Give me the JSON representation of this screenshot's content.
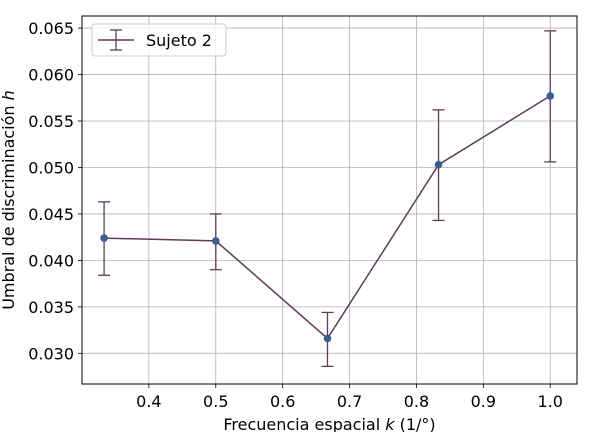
{
  "chart_data": {
    "type": "line",
    "title": "",
    "xlabel_parts": [
      "Frecuencia espacial ",
      "k",
      " (1/°)"
    ],
    "ylabel_parts": [
      "Umbral de discriminación ",
      "h"
    ],
    "xlim": [
      0.3,
      1.04
    ],
    "ylim": [
      0.0267,
      0.0663
    ],
    "x_ticks": [
      0.4,
      0.5,
      0.6,
      0.7,
      0.8,
      0.9,
      1.0
    ],
    "x_tick_labels": [
      "0.4",
      "0.5",
      "0.6",
      "0.7",
      "0.8",
      "0.9",
      "1.0"
    ],
    "y_ticks": [
      0.03,
      0.035,
      0.04,
      0.045,
      0.05,
      0.055,
      0.06,
      0.065
    ],
    "y_tick_labels": [
      "0.030",
      "0.035",
      "0.040",
      "0.045",
      "0.050",
      "0.055",
      "0.060",
      "0.065"
    ],
    "grid": true,
    "legend_position": "top-left",
    "series": [
      {
        "name": "Sujeto 2",
        "line_color": "#5e3c58",
        "marker_color": "#3a5d8f",
        "x": [
          0.333,
          0.5,
          0.667,
          0.833,
          1.0
        ],
        "y": [
          0.0424,
          0.0421,
          0.0316,
          0.0503,
          0.0577
        ],
        "err_low": [
          0.0384,
          0.039,
          0.0286,
          0.0443,
          0.0506
        ],
        "err_high": [
          0.0463,
          0.045,
          0.0344,
          0.0562,
          0.0647
        ]
      }
    ]
  }
}
